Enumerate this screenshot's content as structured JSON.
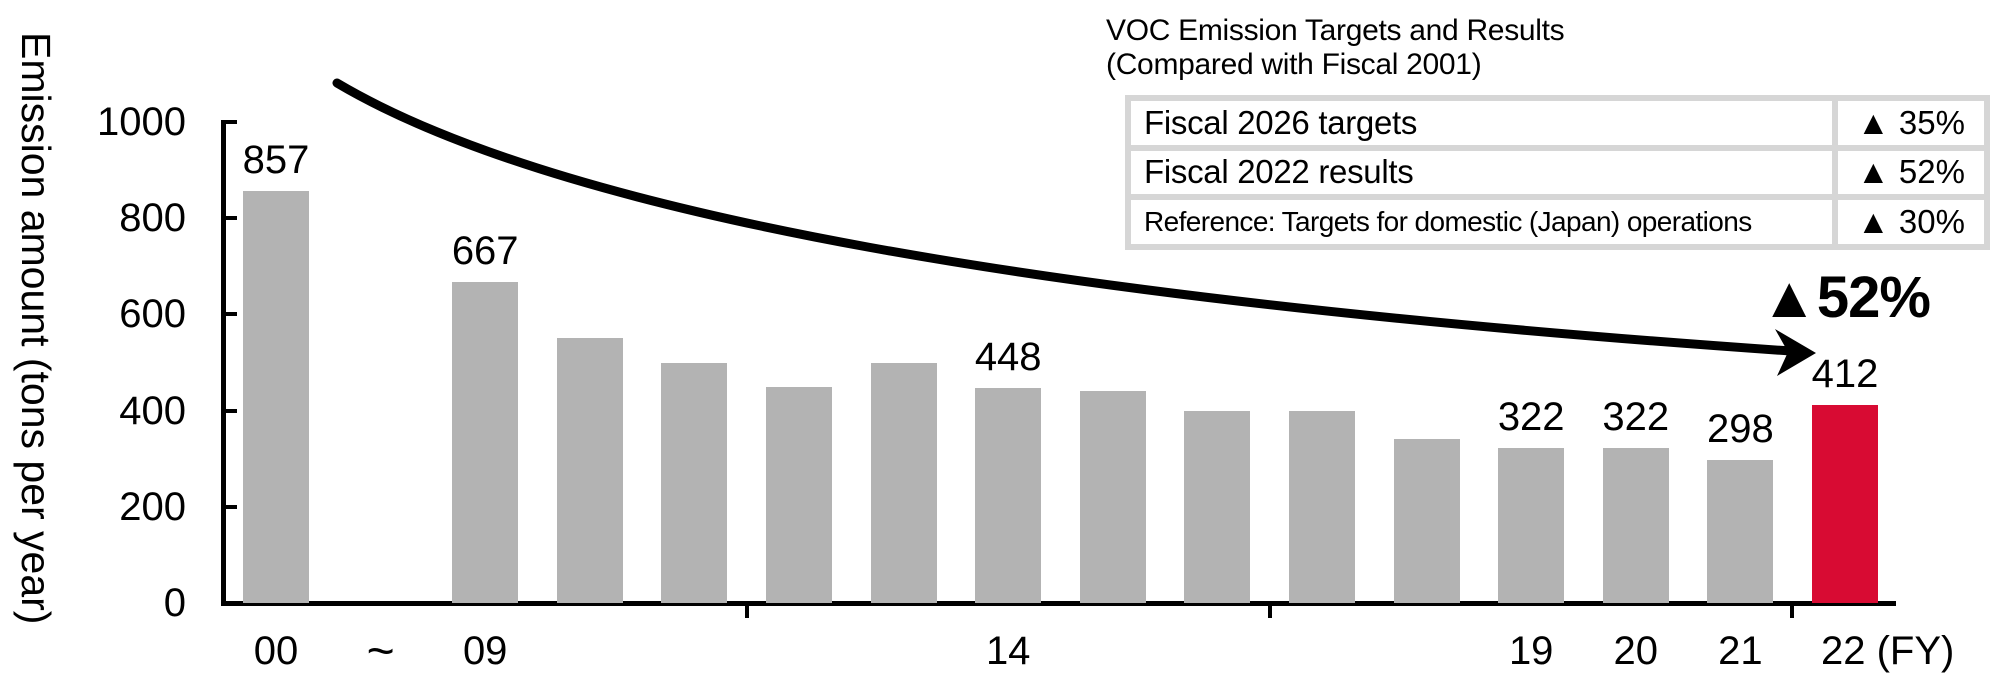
{
  "colors": {
    "bar_gray": "#b3b3b3",
    "highlight_red": "#d80b33",
    "table_border_gray": "#d6d6d6",
    "text_black": "#000000"
  },
  "annotation": {
    "result_badge": "▲52%"
  },
  "table": {
    "title_line1": "VOC Emission Targets and Results",
    "title_line2": "(Compared with Fiscal 2001)",
    "rows": [
      {
        "label": "Fiscal 2026 targets",
        "value": "▲ 35%"
      },
      {
        "label": "Fiscal 2022 results",
        "value": "▲ 52%"
      },
      {
        "label": "Reference: Targets for domestic (Japan) operations",
        "value": "▲ 30%"
      }
    ]
  },
  "chart_data": {
    "type": "bar",
    "title": "VOC Emission Targets and Results (Compared with Fiscal 2001)",
    "ylabel": "Emission amount (tons per year)",
    "xlabel": "(FY)",
    "ylim": [
      0,
      1000
    ],
    "yticks": [
      0,
      200,
      400,
      600,
      800,
      1000
    ],
    "grid": false,
    "gap_label": "~",
    "bars": [
      {
        "slot": 0,
        "x": "00",
        "value": 857,
        "label": "857",
        "highlight": false
      },
      {
        "slot": 2,
        "x": "09",
        "value": 667,
        "label": "667",
        "highlight": false
      },
      {
        "slot": 3,
        "x": "",
        "value": 550,
        "label": "",
        "highlight": false
      },
      {
        "slot": 4,
        "x": "",
        "value": 500,
        "label": "",
        "highlight": false
      },
      {
        "slot": 5,
        "x": "",
        "value": 450,
        "label": "",
        "highlight": false
      },
      {
        "slot": 6,
        "x": "",
        "value": 500,
        "label": "",
        "highlight": false
      },
      {
        "slot": 7,
        "x": "14",
        "value": 448,
        "label": "448",
        "highlight": false
      },
      {
        "slot": 8,
        "x": "",
        "value": 440,
        "label": "",
        "highlight": false
      },
      {
        "slot": 9,
        "x": "",
        "value": 400,
        "label": "",
        "highlight": false
      },
      {
        "slot": 10,
        "x": "",
        "value": 400,
        "label": "",
        "highlight": false
      },
      {
        "slot": 11,
        "x": "",
        "value": 340,
        "label": "",
        "highlight": false
      },
      {
        "slot": 12,
        "x": "19",
        "value": 322,
        "label": "322",
        "highlight": false
      },
      {
        "slot": 13,
        "x": "20",
        "value": 322,
        "label": "322",
        "highlight": false
      },
      {
        "slot": 14,
        "x": "21",
        "value": 298,
        "label": "298",
        "highlight": false
      },
      {
        "slot": 15,
        "x": "22",
        "suffix": "(FY)",
        "value": 412,
        "label": "412",
        "highlight": true
      }
    ]
  }
}
